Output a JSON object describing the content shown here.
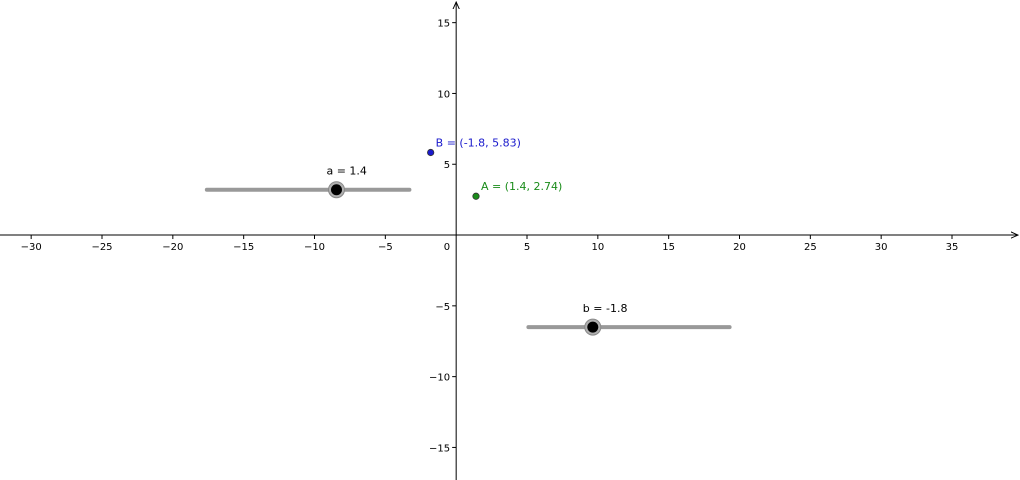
{
  "graphics": {
    "x_axis": {
      "min": -32.2,
      "max": 39.8,
      "ticks": [
        -30,
        -25,
        -20,
        -15,
        -10,
        -5,
        5,
        10,
        15,
        20,
        25,
        30,
        35
      ],
      "tick_labels": [
        "−30",
        "−25",
        "−20",
        "−15",
        "−10",
        "−5",
        "5",
        "10",
        "15",
        "20",
        "25",
        "30",
        "35"
      ]
    },
    "y_axis": {
      "min": -17.3,
      "max": 16.6,
      "ticks": [
        15,
        10,
        5,
        -5,
        -10,
        -15
      ],
      "tick_labels": [
        "15",
        "10",
        "5",
        "−5",
        "−10",
        "−15"
      ]
    },
    "origin_label": "0",
    "points": [
      {
        "name": "B",
        "x": -1.8,
        "y": 5.83,
        "label": "B = (-1.8, 5.83)",
        "color": "#1a1acc"
      },
      {
        "name": "A",
        "x": 1.4,
        "y": 2.74,
        "label": "A = (1.4, 2.74)",
        "color": "#1a8c1a"
      }
    ],
    "sliders": [
      {
        "name": "a",
        "value": 1.4,
        "min": -5,
        "max": 5,
        "label": "a = 1.4",
        "track_start_x": -17.6,
        "track_end_x": -3.3,
        "track_y": 3.2
      },
      {
        "name": "b",
        "value": -1.8,
        "min": -5,
        "max": 5,
        "label": "b = -1.8",
        "track_start_x": 5.1,
        "track_end_x": 19.3,
        "track_y": -6.5
      }
    ],
    "colors": {
      "axis": "#000000",
      "slider_track": "#999999",
      "slider_knob": "#000000",
      "point_B": "#1a1acc",
      "point_A": "#1a8c1a"
    }
  }
}
